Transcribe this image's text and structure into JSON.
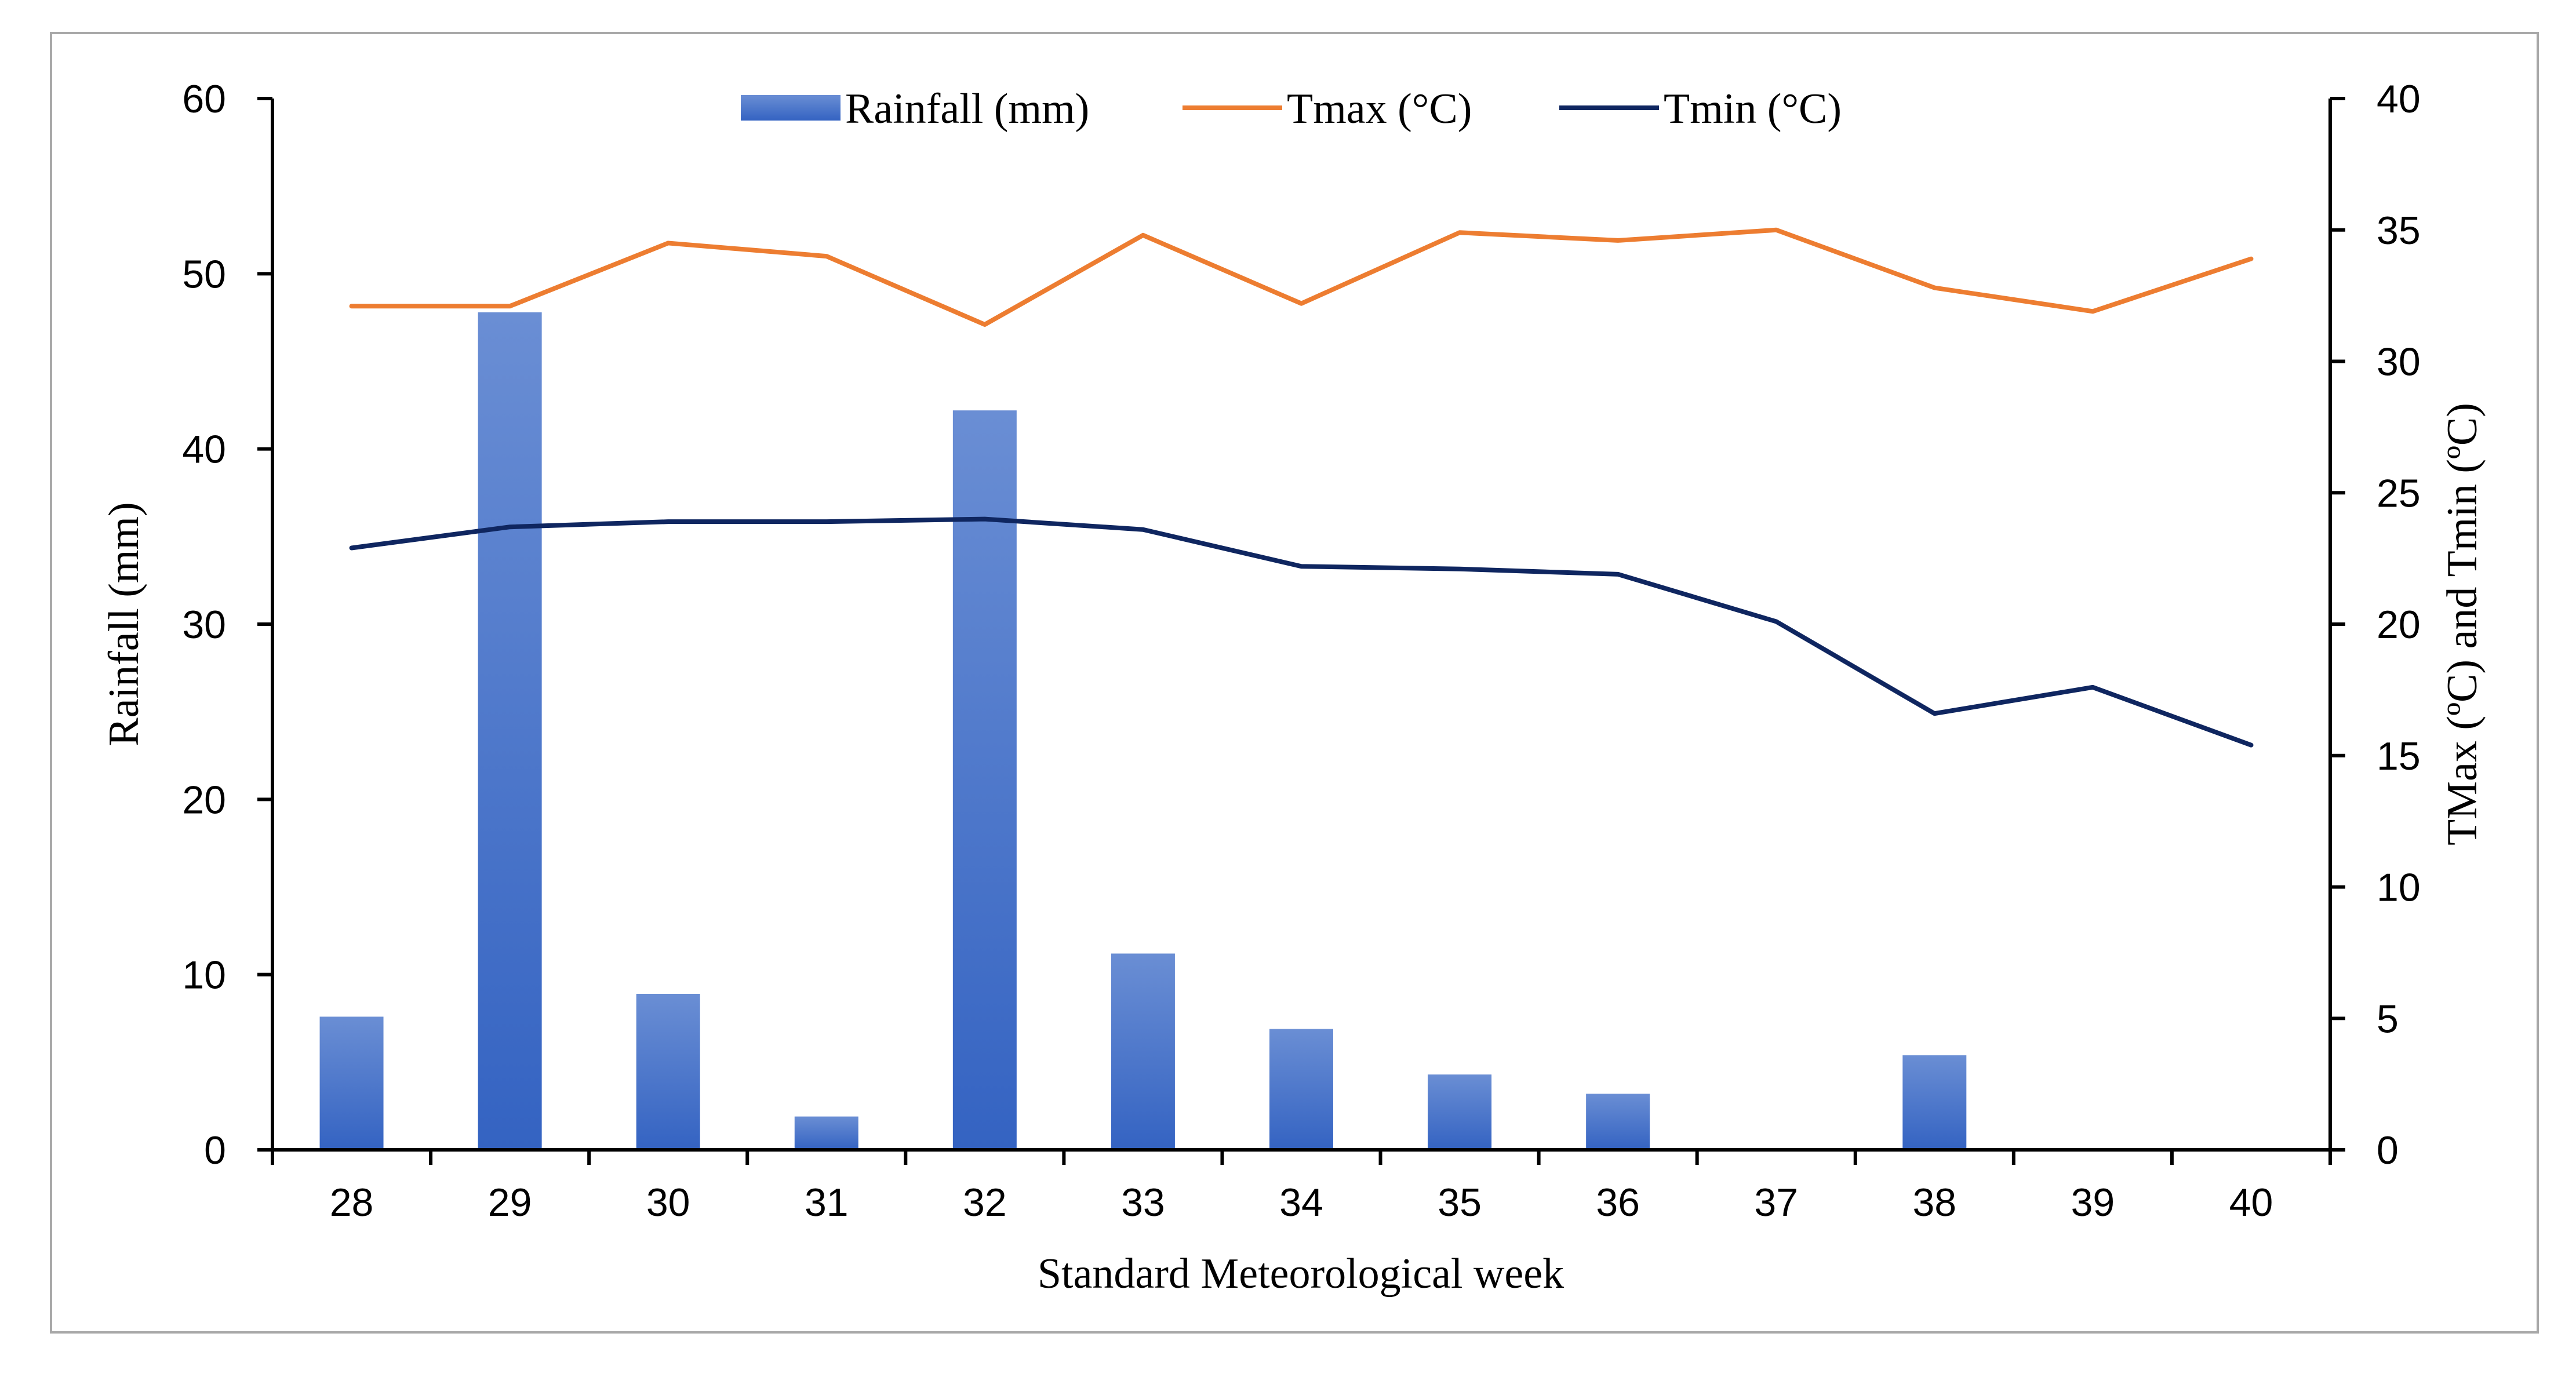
{
  "chart_data": {
    "type": "bar",
    "title": "",
    "xlabel": "Standard Meteorological week",
    "ylabel": "Rainfall (mm)",
    "y2label": "TMax (ºC) and Tmin (ºC)",
    "categories": [
      "28",
      "29",
      "30",
      "31",
      "32",
      "33",
      "34",
      "35",
      "36",
      "37",
      "38",
      "39",
      "40"
    ],
    "ylim": [
      0,
      60
    ],
    "y2lim": [
      0,
      40
    ],
    "yticks": [
      "0",
      "10",
      "20",
      "30",
      "40",
      "50",
      "60"
    ],
    "y2ticks": [
      "0",
      "5",
      "10",
      "15",
      "20",
      "25",
      "30",
      "35",
      "40"
    ],
    "legend_position": "top-center",
    "grid": false,
    "series": [
      {
        "name": "Rainfall (mm)",
        "kind": "bar",
        "axis": "left",
        "color": "#4472C4",
        "values": [
          7.6,
          47.8,
          8.9,
          1.9,
          42.2,
          11.2,
          6.9,
          4.3,
          3.2,
          0,
          5.4,
          0,
          0
        ]
      },
      {
        "name": "Tmax (°C)",
        "kind": "line",
        "axis": "right",
        "color": "#ED7D31",
        "values": [
          32.1,
          32.1,
          34.5,
          34.0,
          31.4,
          34.8,
          32.2,
          34.9,
          34.6,
          35.0,
          32.8,
          31.9,
          33.9
        ]
      },
      {
        "name": "Tmin (°C)",
        "kind": "line",
        "axis": "right",
        "color": "#0F2660",
        "values": [
          22.9,
          23.7,
          23.9,
          23.9,
          24.0,
          23.6,
          22.2,
          22.1,
          21.9,
          20.1,
          16.6,
          17.6,
          15.4
        ]
      }
    ]
  }
}
